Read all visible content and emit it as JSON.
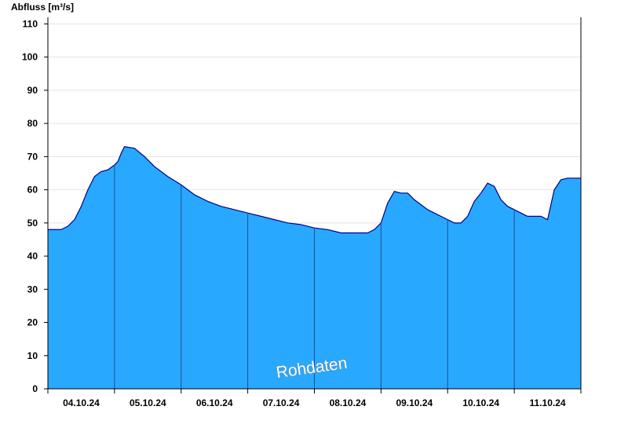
{
  "chart_data": {
    "type": "area",
    "title": "",
    "ylabel": "Abfluss [m³/s]",
    "xlabel": "",
    "ylim": [
      0,
      112
    ],
    "yticks": [
      0,
      10,
      20,
      30,
      40,
      50,
      60,
      70,
      80,
      90,
      100,
      110
    ],
    "x_range_days": [
      0,
      8
    ],
    "day_labels": [
      "04.10.24",
      "05.10.24",
      "06.10.24",
      "07.10.24",
      "08.10.24",
      "09.10.24",
      "10.10.24",
      "11.10.24"
    ],
    "grid": true,
    "legend": "none",
    "colors": {
      "fill": "#29a8ff",
      "line": "#00008b",
      "day_separator": "#1f4f8f"
    },
    "watermark": "Rohdaten",
    "series": [
      {
        "x": [
          0,
          0.2,
          0.3,
          0.4,
          0.5,
          0.6,
          0.7,
          0.8,
          0.9,
          1.0,
          1.05,
          1.1,
          1.15,
          1.3,
          1.45,
          1.6,
          1.8,
          2.0,
          2.2,
          2.4,
          2.6,
          2.8,
          3.0,
          3.2,
          3.4,
          3.6,
          3.8,
          4.0,
          4.2,
          4.4,
          4.6,
          4.8,
          4.9,
          5.0,
          5.1,
          5.2,
          5.3,
          5.4,
          5.5,
          5.6,
          5.7,
          5.8,
          5.9,
          6.0,
          6.1,
          6.2,
          6.3,
          6.4,
          6.5,
          6.6,
          6.7,
          6.8,
          6.9,
          7.0,
          7.1,
          7.2,
          7.3,
          7.4,
          7.5,
          7.6,
          7.7,
          7.8,
          8.0
        ],
        "y": [
          48,
          48,
          49,
          51,
          55,
          60,
          64,
          65.5,
          66,
          67.5,
          68.5,
          71,
          73,
          72.5,
          70,
          67,
          64,
          61.5,
          58.5,
          56.5,
          55,
          54,
          53,
          52,
          51,
          50,
          49.5,
          48.5,
          48,
          47,
          47,
          47,
          48,
          50,
          56,
          59.5,
          59,
          59,
          57,
          55.5,
          54,
          53,
          52,
          51,
          50,
          50,
          52,
          56.5,
          59,
          62,
          61,
          57,
          55,
          54,
          53,
          52,
          52,
          52,
          51,
          60,
          63,
          63.5,
          63.5
        ]
      }
    ]
  }
}
